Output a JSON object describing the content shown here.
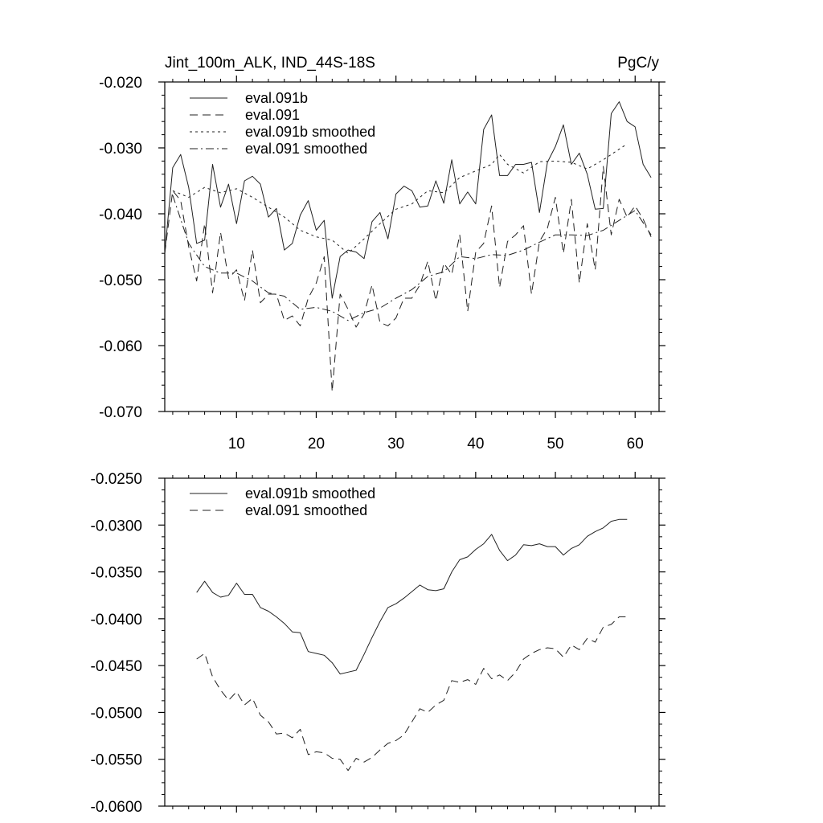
{
  "chart_data": [
    {
      "type": "line",
      "title": "Jint_100m_ALK, IND_44S-18S",
      "units": "PgC/y",
      "xlim": [
        1,
        63
      ],
      "ylim": [
        -0.07,
        -0.02
      ],
      "xticks": [
        10,
        20,
        30,
        40,
        50,
        60
      ],
      "xtick_labels": [
        "10",
        "20",
        "30",
        "40",
        "50",
        "60"
      ],
      "yticks": [
        -0.07,
        -0.06,
        -0.05,
        -0.04,
        -0.03,
        -0.02
      ],
      "ytick_labels": [
        "-0.070",
        "-0.060",
        "-0.050",
        "-0.040",
        "-0.030",
        "-0.020"
      ],
      "legend_position": "top-left",
      "series": [
        {
          "name": "eval.091b",
          "style": "solid",
          "x": [
            1,
            2,
            3,
            4,
            5,
            6,
            7,
            8,
            9,
            10,
            11,
            12,
            13,
            14,
            15,
            16,
            17,
            18,
            19,
            20,
            21,
            22,
            23,
            24,
            25,
            26,
            27,
            28,
            29,
            30,
            31,
            32,
            33,
            34,
            35,
            36,
            37,
            38,
            39,
            40,
            41,
            42,
            43,
            44,
            45,
            46,
            47,
            48,
            49,
            50,
            51,
            52,
            53,
            54,
            55,
            56,
            57,
            58,
            59,
            60,
            61,
            62
          ],
          "values": [
            -0.046,
            -0.033,
            -0.031,
            -0.036,
            -0.0445,
            -0.044,
            -0.0325,
            -0.039,
            -0.0355,
            -0.0415,
            -0.035,
            -0.0343,
            -0.0355,
            -0.0405,
            -0.0392,
            -0.0455,
            -0.0445,
            -0.0402,
            -0.038,
            -0.0425,
            -0.041,
            -0.0528,
            -0.0465,
            -0.0455,
            -0.0458,
            -0.0468,
            -0.0412,
            -0.0398,
            -0.0438,
            -0.037,
            -0.0358,
            -0.0365,
            -0.039,
            -0.0388,
            -0.035,
            -0.0384,
            -0.0318,
            -0.0385,
            -0.0367,
            -0.0385,
            -0.0272,
            -0.025,
            -0.0342,
            -0.0342,
            -0.0325,
            -0.0325,
            -0.0322,
            -0.0398,
            -0.0322,
            -0.0298,
            -0.0265,
            -0.0325,
            -0.0308,
            -0.034,
            -0.0393,
            -0.0392,
            -0.0248,
            -0.023,
            -0.026,
            -0.0268,
            -0.0325,
            -0.0345
          ]
        },
        {
          "name": "eval.091",
          "style": "dashed",
          "x": [
            1,
            2,
            3,
            4,
            5,
            6,
            7,
            8,
            9,
            10,
            11,
            12,
            13,
            14,
            15,
            16,
            17,
            18,
            19,
            20,
            21,
            22,
            23,
            24,
            25,
            26,
            27,
            28,
            29,
            30,
            31,
            32,
            33,
            34,
            35,
            36,
            37,
            38,
            39,
            40,
            41,
            42,
            43,
            44,
            45,
            46,
            47,
            48,
            49,
            50,
            51,
            52,
            53,
            54,
            55,
            56,
            57,
            58,
            59,
            60,
            61,
            62
          ],
          "values": [
            -0.046,
            -0.0365,
            -0.038,
            -0.045,
            -0.0502,
            -0.0415,
            -0.052,
            -0.0428,
            -0.0498,
            -0.0485,
            -0.0532,
            -0.0455,
            -0.0535,
            -0.0522,
            -0.0522,
            -0.0562,
            -0.0555,
            -0.057,
            -0.0528,
            -0.0505,
            -0.0465,
            -0.067,
            -0.0522,
            -0.0545,
            -0.0572,
            -0.0552,
            -0.0508,
            -0.0565,
            -0.057,
            -0.0558,
            -0.0528,
            -0.0528,
            -0.0508,
            -0.0472,
            -0.0532,
            -0.0475,
            -0.0492,
            -0.0432,
            -0.0548,
            -0.0458,
            -0.0445,
            -0.0388,
            -0.0512,
            -0.0442,
            -0.0432,
            -0.0418,
            -0.0522,
            -0.0442,
            -0.0422,
            -0.0375,
            -0.046,
            -0.0378,
            -0.0505,
            -0.0415,
            -0.0485,
            -0.0328,
            -0.0432,
            -0.0378,
            -0.0405,
            -0.0388,
            -0.0408,
            -0.0435
          ]
        },
        {
          "name": "eval.091b smoothed",
          "style": "dotted",
          "x": [
            2,
            4,
            6,
            8,
            10,
            12,
            14,
            16,
            18,
            20,
            22,
            24,
            26,
            28,
            30,
            32,
            34,
            36,
            38,
            40,
            42,
            43,
            44,
            46,
            48,
            50,
            52,
            54,
            56,
            58,
            59
          ],
          "values": [
            -0.0365,
            -0.0375,
            -0.036,
            -0.0368,
            -0.0362,
            -0.0375,
            -0.039,
            -0.0405,
            -0.0425,
            -0.0435,
            -0.044,
            -0.046,
            -0.0438,
            -0.0415,
            -0.0393,
            -0.0385,
            -0.0365,
            -0.0368,
            -0.0345,
            -0.0335,
            -0.0325,
            -0.031,
            -0.0325,
            -0.0338,
            -0.0321,
            -0.032,
            -0.0322,
            -0.0332,
            -0.0318,
            -0.0302,
            -0.0294
          ]
        },
        {
          "name": "eval.091 smoothed",
          "style": "dashdot",
          "x": [
            2,
            4,
            6,
            8,
            10,
            12,
            14,
            16,
            18,
            20,
            22,
            24,
            26,
            28,
            30,
            32,
            34,
            36,
            38,
            40,
            42,
            44,
            46,
            48,
            50,
            52,
            54,
            56,
            58,
            60,
            62
          ],
          "values": [
            -0.0372,
            -0.0445,
            -0.048,
            -0.049,
            -0.049,
            -0.0502,
            -0.052,
            -0.0525,
            -0.0545,
            -0.0542,
            -0.0548,
            -0.0562,
            -0.055,
            -0.0543,
            -0.0528,
            -0.0515,
            -0.0495,
            -0.0488,
            -0.0465,
            -0.0468,
            -0.0462,
            -0.0463,
            -0.0455,
            -0.0443,
            -0.0432,
            -0.0432,
            -0.0433,
            -0.0425,
            -0.041,
            -0.0395,
            -0.0432
          ]
        }
      ]
    },
    {
      "type": "line",
      "title": "",
      "xlim": [
        1,
        63
      ],
      "ylim": [
        -0.06,
        -0.025
      ],
      "xticks": [
        10,
        20,
        30,
        40,
        50,
        60
      ],
      "xtick_labels": [],
      "yticks": [
        -0.06,
        -0.055,
        -0.05,
        -0.045,
        -0.04,
        -0.035,
        -0.03,
        -0.025
      ],
      "ytick_labels": [
        "-0.0600",
        "-0.0550",
        "-0.0500",
        "-0.0450",
        "-0.0400",
        "-0.0350",
        "-0.0300",
        "-0.0250"
      ],
      "legend_position": "top-left",
      "series": [
        {
          "name": "eval.091b smoothed",
          "style": "solid",
          "x": [
            5,
            6,
            7,
            8,
            9,
            10,
            11,
            12,
            13,
            14,
            15,
            16,
            17,
            18,
            19,
            20,
            21,
            22,
            23,
            24,
            25,
            26,
            27,
            28,
            29,
            30,
            31,
            32,
            33,
            34,
            35,
            36,
            37,
            38,
            39,
            40,
            41,
            42,
            43,
            44,
            45,
            46,
            47,
            48,
            49,
            50,
            51,
            52,
            53,
            54,
            55,
            56,
            57,
            58,
            59
          ],
          "values": [
            -0.0372,
            -0.036,
            -0.0372,
            -0.0377,
            -0.0375,
            -0.0362,
            -0.0374,
            -0.0374,
            -0.0388,
            -0.0392,
            -0.0398,
            -0.0405,
            -0.0414,
            -0.0415,
            -0.0435,
            -0.0437,
            -0.0439,
            -0.0447,
            -0.0459,
            -0.0457,
            -0.0455,
            -0.0438,
            -0.042,
            -0.0403,
            -0.0388,
            -0.0384,
            -0.0378,
            -0.0371,
            -0.0364,
            -0.0369,
            -0.037,
            -0.0368,
            -0.035,
            -0.0337,
            -0.0334,
            -0.0326,
            -0.032,
            -0.031,
            -0.0327,
            -0.0338,
            -0.0332,
            -0.0321,
            -0.0322,
            -0.032,
            -0.0323,
            -0.0323,
            -0.0332,
            -0.0325,
            -0.0321,
            -0.0312,
            -0.0307,
            -0.0303,
            -0.0296,
            -0.0294,
            -0.0294
          ]
        },
        {
          "name": "eval.091 smoothed",
          "style": "dashed",
          "x": [
            5,
            6,
            7,
            8,
            9,
            10,
            11,
            12,
            13,
            14,
            15,
            16,
            17,
            18,
            19,
            20,
            21,
            22,
            23,
            24,
            25,
            26,
            27,
            28,
            29,
            30,
            31,
            32,
            33,
            34,
            35,
            36,
            37,
            38,
            39,
            40,
            41,
            42,
            43,
            44,
            45,
            46,
            47,
            48,
            49,
            50,
            51,
            52,
            53,
            54,
            55,
            56,
            57,
            58,
            59
          ],
          "values": [
            -0.0443,
            -0.0437,
            -0.0462,
            -0.0476,
            -0.0487,
            -0.0478,
            -0.0492,
            -0.0485,
            -0.0503,
            -0.051,
            -0.0523,
            -0.0522,
            -0.0527,
            -0.0518,
            -0.0545,
            -0.0542,
            -0.0543,
            -0.0549,
            -0.055,
            -0.0562,
            -0.0549,
            -0.0553,
            -0.0548,
            -0.054,
            -0.0533,
            -0.053,
            -0.0524,
            -0.051,
            -0.0496,
            -0.05,
            -0.0492,
            -0.0487,
            -0.0466,
            -0.0468,
            -0.0465,
            -0.047,
            -0.0453,
            -0.0464,
            -0.046,
            -0.0466,
            -0.0457,
            -0.0443,
            -0.0437,
            -0.0433,
            -0.0431,
            -0.0432,
            -0.0441,
            -0.0428,
            -0.0433,
            -0.0421,
            -0.0425,
            -0.0409,
            -0.0406,
            -0.0398,
            -0.0398
          ]
        }
      ]
    }
  ]
}
